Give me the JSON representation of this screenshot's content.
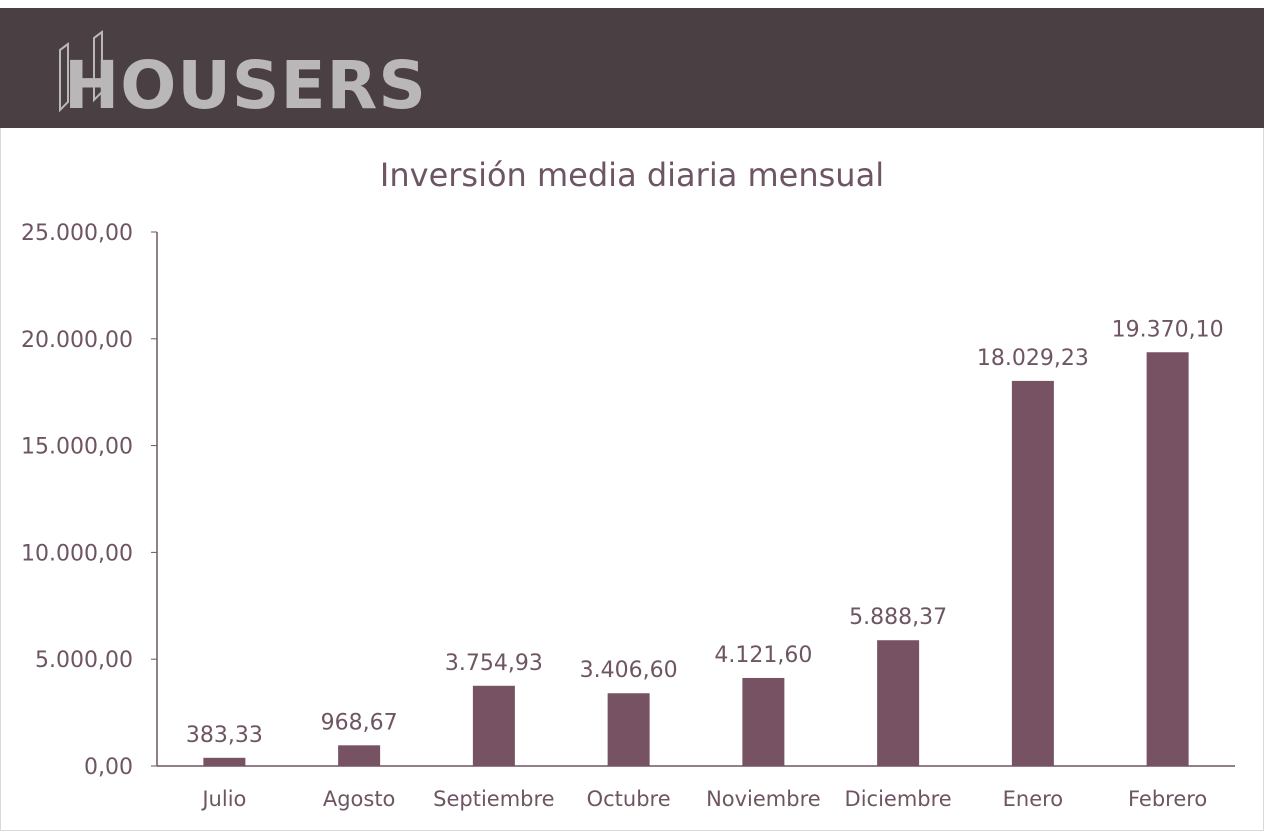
{
  "header": {
    "logo_text": "HOUSERS",
    "background": "#4a3f42",
    "logo_color": "#b9b7b8"
  },
  "chart_data": {
    "type": "bar",
    "title": "Inversión media diaria mensual",
    "categories": [
      "Julio",
      "Agosto",
      "Septiembre",
      "Octubre",
      "Noviembre",
      "Diciembre",
      "Enero",
      "Febrero"
    ],
    "values": [
      383.33,
      968.67,
      3754.93,
      3406.6,
      4121.6,
      5888.37,
      18029.23,
      19370.1
    ],
    "data_labels": [
      "383,33",
      "968,67",
      "3.754,93",
      "3.406,60",
      "4.121,60",
      "5.888,37",
      "18.029,23",
      "19.370,10"
    ],
    "y_ticks": [
      0,
      5000,
      10000,
      15000,
      20000,
      25000
    ],
    "y_tick_labels": [
      "0,00",
      "5.000,00",
      "10.000,00",
      "15.000,00",
      "20.000,00",
      "25.000,00"
    ],
    "ylim": [
      0,
      25000
    ],
    "grid": false,
    "bar_color": "#765263",
    "axis_color": "#6e5563"
  }
}
